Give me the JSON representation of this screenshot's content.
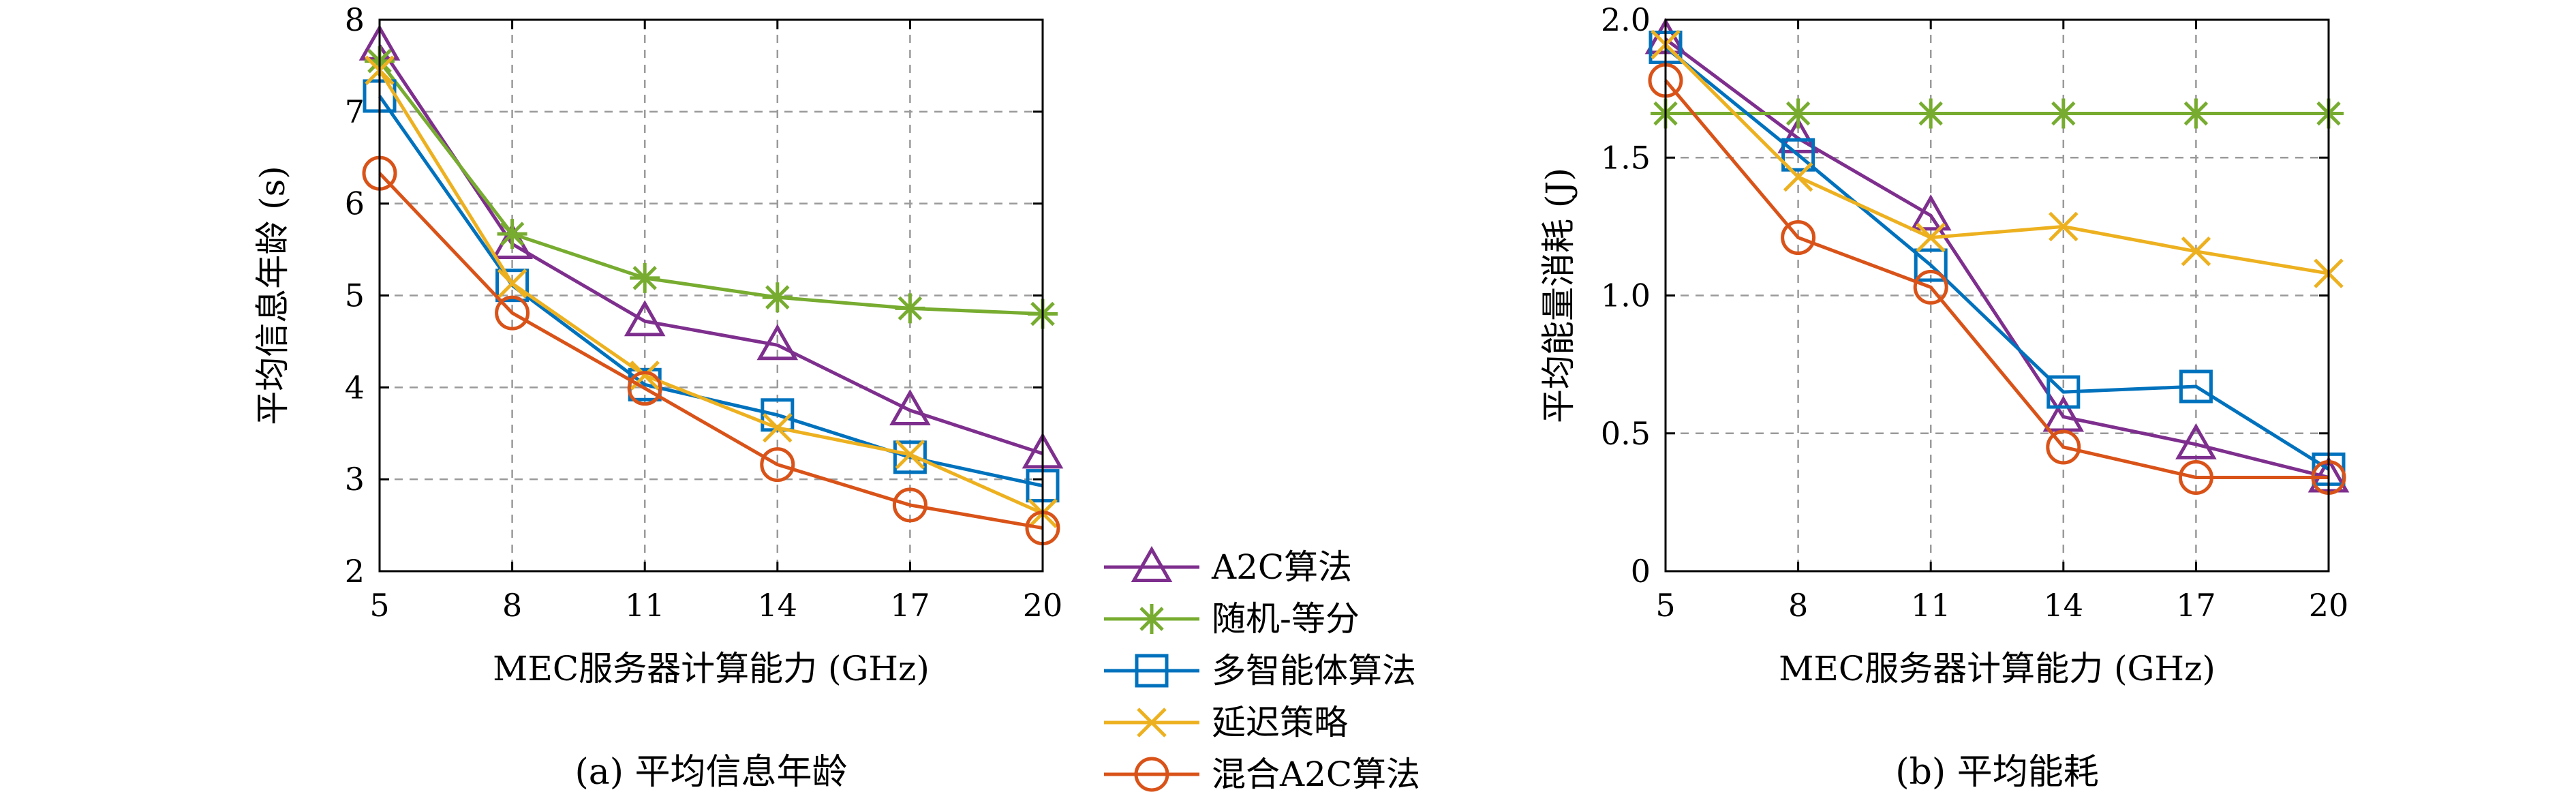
{
  "chart_data": [
    {
      "type": "line",
      "panel": "a",
      "caption": "(a) 平均信息年龄",
      "xlabel": "MEC服务器计算能力 (GHz)",
      "ylabel": "平均信息年龄 (s)",
      "x": [
        5,
        8,
        11,
        14,
        17,
        20
      ],
      "xlim": [
        5,
        20
      ],
      "ylim": [
        2,
        8
      ],
      "xticks": [
        "5",
        "8",
        "11",
        "14",
        "17",
        "20"
      ],
      "yticks": [
        "2",
        "3",
        "4",
        "5",
        "6",
        "7",
        "8"
      ],
      "grid": true,
      "series": [
        {
          "name": "A2C算法",
          "values": [
            7.72,
            5.56,
            4.72,
            4.46,
            3.75,
            3.28
          ]
        },
        {
          "name": "随机-等分",
          "values": [
            7.55,
            5.67,
            5.19,
            4.98,
            4.86,
            4.8
          ]
        },
        {
          "name": "多智能体算法",
          "values": [
            7.17,
            5.11,
            4.03,
            3.7,
            3.24,
            2.93
          ]
        },
        {
          "name": "延迟策略",
          "values": [
            7.45,
            5.13,
            4.13,
            3.56,
            3.27,
            2.63
          ]
        },
        {
          "name": "混合A2C算法",
          "values": [
            6.33,
            4.81,
            3.99,
            3.16,
            2.72,
            2.47
          ]
        }
      ]
    },
    {
      "type": "line",
      "panel": "b",
      "caption": "(b) 平均能耗",
      "xlabel": "MEC服务器计算能力 (GHz)",
      "ylabel": "平均能量消耗 (J)",
      "x": [
        5,
        8,
        11,
        14,
        17,
        20
      ],
      "xlim": [
        5,
        20
      ],
      "ylim": [
        0,
        2
      ],
      "xticks": [
        "5",
        "8",
        "11",
        "14",
        "17",
        "20"
      ],
      "yticks": [
        "0",
        "0.5",
        "1.0",
        "1.5",
        "2.0"
      ],
      "grid": true,
      "series": [
        {
          "name": "A2C算法",
          "values": [
            1.93,
            1.57,
            1.29,
            0.56,
            0.46,
            0.34
          ]
        },
        {
          "name": "随机-等分",
          "values": [
            1.66,
            1.66,
            1.66,
            1.66,
            1.66,
            1.66
          ]
        },
        {
          "name": "多智能体算法",
          "values": [
            1.9,
            1.51,
            1.11,
            0.65,
            0.67,
            0.37
          ]
        },
        {
          "name": "延迟策略",
          "values": [
            1.91,
            1.43,
            1.21,
            1.25,
            1.16,
            1.08
          ]
        },
        {
          "name": "混合A2C算法",
          "values": [
            1.78,
            1.21,
            1.03,
            0.45,
            0.34,
            0.34
          ]
        }
      ]
    }
  ],
  "legend": {
    "placement": "between-panels",
    "items": [
      {
        "label": "A2C算法",
        "marker": "triangle",
        "color": "#7E2F8E"
      },
      {
        "label": "随机-等分",
        "marker": "asterisk",
        "color": "#77AC30"
      },
      {
        "label": "多智能体算法",
        "marker": "square",
        "color": "#0072BD"
      },
      {
        "label": "延迟策略",
        "marker": "x",
        "color": "#EDB120"
      },
      {
        "label": "混合A2C算法",
        "marker": "circle",
        "color": "#D95319"
      }
    ]
  }
}
